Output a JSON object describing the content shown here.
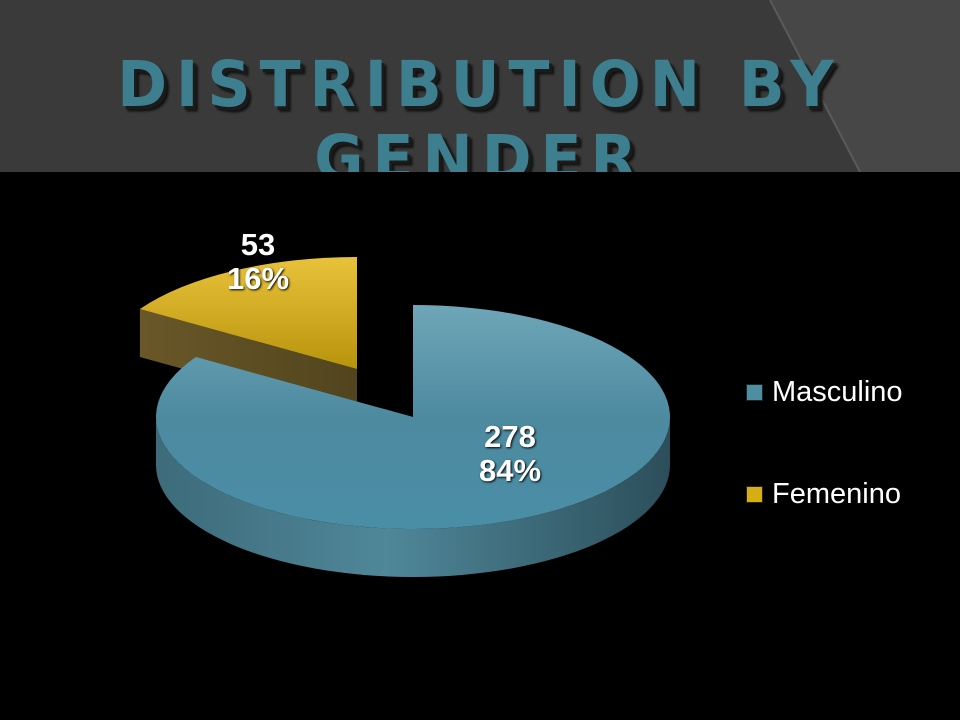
{
  "title": "DISTRIBUTION BY GENDER",
  "chart_data": {
    "type": "pie",
    "title": "DISTRIBUTION BY GENDER",
    "legend_position": "right",
    "slices": [
      {
        "name": "Masculino",
        "value": 278,
        "percent": "84%",
        "color": "#4e8ea3"
      },
      {
        "name": "Femenino",
        "value": 53,
        "percent": "16%",
        "color": "#d6ae12"
      }
    ]
  }
}
